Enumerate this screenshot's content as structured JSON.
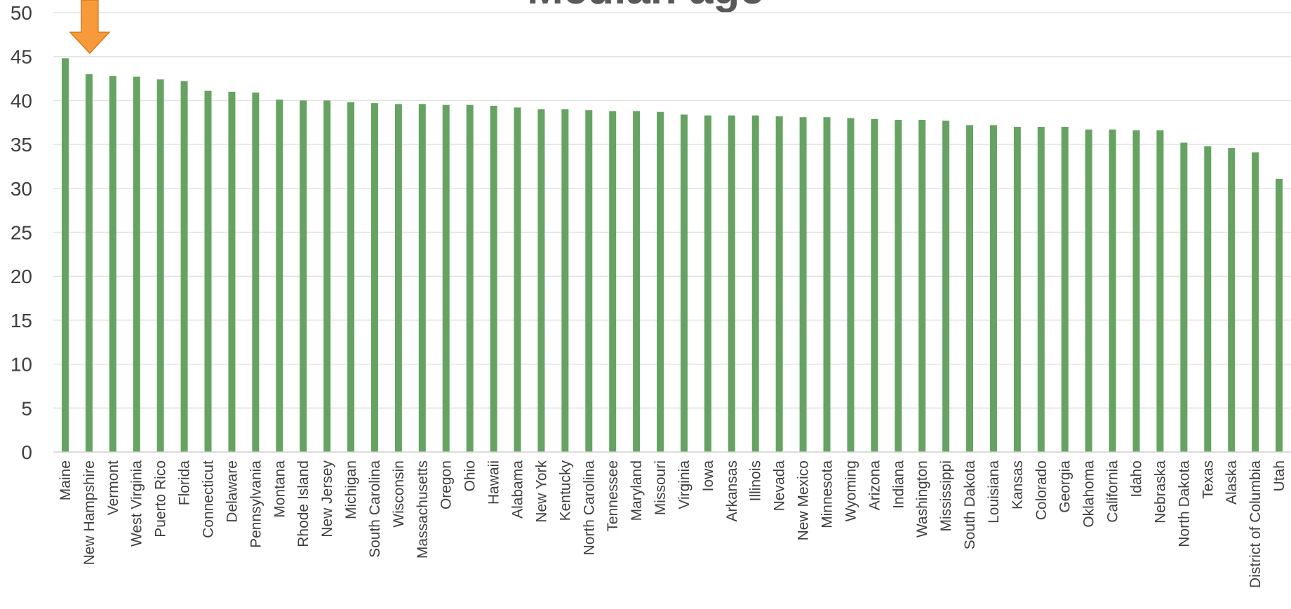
{
  "chart_data": {
    "type": "bar",
    "title": "Median age",
    "xlabel": "",
    "ylabel": "",
    "ylim": [
      0,
      50
    ],
    "yticks": [
      0,
      5,
      10,
      15,
      20,
      25,
      30,
      35,
      40,
      45,
      50
    ],
    "grid": true,
    "bar_color": "#66A363",
    "arrow_color": "#F79A3A",
    "highlighted_category": "New Hampshire",
    "categories": [
      "Maine",
      "New Hampshire",
      "Vermont",
      "West Virginia",
      "Puerto Rico",
      "Florida",
      "Connecticut",
      "Delaware",
      "Pennsylvania",
      "Montana",
      "Rhode Island",
      "New Jersey",
      "Michigan",
      "South Carolina",
      "Wisconsin",
      "Massachusetts",
      "Oregon",
      "Ohio",
      "Hawaii",
      "Alabama",
      "New York",
      "Kentucky",
      "North Carolina",
      "Tennessee",
      "Maryland",
      "Missouri",
      "Virginia",
      "Iowa",
      "Arkansas",
      "Illinois",
      "Nevada",
      "New Mexico",
      "Minnesota",
      "Wyoming",
      "Arizona",
      "Indiana",
      "Washington",
      "Mississippi",
      "South Dakota",
      "Louisiana",
      "Kansas",
      "Colorado",
      "Georgia",
      "Oklahoma",
      "California",
      "Idaho",
      "Nebraska",
      "North Dakota",
      "Texas",
      "Alaska",
      "District of Columbia",
      "Utah"
    ],
    "values": [
      44.8,
      43.0,
      42.8,
      42.7,
      42.4,
      42.2,
      41.1,
      41.0,
      40.9,
      40.1,
      40.0,
      40.0,
      39.8,
      39.7,
      39.6,
      39.6,
      39.5,
      39.5,
      39.4,
      39.2,
      39.0,
      39.0,
      38.9,
      38.8,
      38.8,
      38.7,
      38.4,
      38.3,
      38.3,
      38.3,
      38.2,
      38.1,
      38.1,
      38.0,
      37.9,
      37.8,
      37.8,
      37.7,
      37.2,
      37.2,
      37.0,
      37.0,
      37.0,
      36.7,
      36.7,
      36.6,
      36.6,
      35.2,
      34.8,
      34.6,
      34.1,
      31.1
    ]
  }
}
